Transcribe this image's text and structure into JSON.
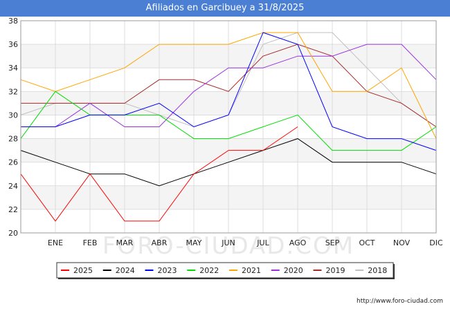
{
  "chart_data": {
    "type": "line",
    "title": "Afiliados en Garcibuey a 31/8/2025",
    "categories": [
      "",
      "ENE",
      "FEB",
      "MAR",
      "ABR",
      "MAY",
      "JUN",
      "JUL",
      "AGO",
      "SEP",
      "OCT",
      "NOV",
      "DIC"
    ],
    "ylim": [
      20,
      38
    ],
    "yticks": [
      20,
      22,
      24,
      26,
      28,
      30,
      32,
      34,
      36,
      38
    ],
    "grid": true,
    "legend_position": "bottom",
    "series": [
      {
        "name": "2025",
        "color": "#ff0000",
        "values": [
          25,
          21,
          25,
          21,
          21,
          25,
          27,
          27,
          29,
          null,
          null,
          null,
          null
        ]
      },
      {
        "name": "2024",
        "color": "#000000",
        "values": [
          27,
          26,
          25,
          25,
          24,
          25,
          26,
          27,
          28,
          26,
          26,
          26,
          25
        ]
      },
      {
        "name": "2023",
        "color": "#0000ff",
        "values": [
          29,
          29,
          30,
          30,
          31,
          29,
          30,
          37,
          36,
          29,
          28,
          28,
          27
        ]
      },
      {
        "name": "2022",
        "color": "#00dd00",
        "values": [
          28,
          32,
          30,
          30,
          30,
          28,
          28,
          29,
          30,
          27,
          27,
          27,
          29
        ]
      },
      {
        "name": "2021",
        "color": "#ffa500",
        "values": [
          33,
          32,
          33,
          34,
          36,
          36,
          36,
          37,
          37,
          32,
          32,
          34,
          28
        ]
      },
      {
        "name": "2020",
        "color": "#9a30e0",
        "values": [
          29,
          29,
          31,
          29,
          29,
          32,
          34,
          34,
          35,
          35,
          36,
          36,
          33
        ]
      },
      {
        "name": "2019",
        "color": "#a52a2a",
        "values": [
          31,
          31,
          31,
          31,
          33,
          33,
          32,
          35,
          36,
          35,
          32,
          31,
          29
        ]
      },
      {
        "name": "2018",
        "color": "#c0c0c0",
        "values": [
          30,
          31,
          31,
          31,
          30,
          29,
          30,
          36,
          37,
          37,
          34,
          31,
          29
        ]
      }
    ]
  },
  "watermark": "FORO-CIUDAD.COM",
  "footer": "http://www.foro-ciudad.com"
}
